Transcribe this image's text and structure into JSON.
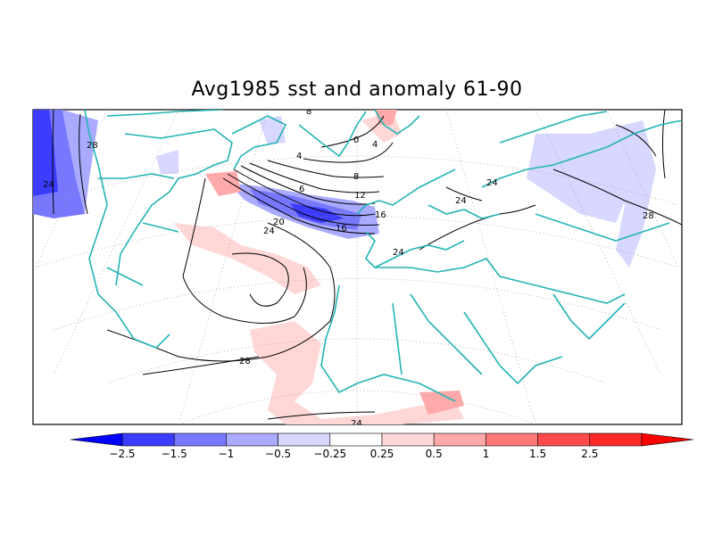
{
  "title": "Avg1985 sst and anomaly 61-90",
  "colorbar": {
    "tick_labels": [
      "-2.5",
      "-1.5",
      "-1",
      "-0.5",
      "-0.25",
      "0.25",
      "0.5",
      "1",
      "1.5",
      "2.5"
    ],
    "colors": [
      "#0000ff",
      "#3c3cff",
      "#7878ff",
      "#aaaaff",
      "#d7d7ff",
      "#ffffff",
      "#ffd7d7",
      "#ffaaaa",
      "#ff7878",
      "#ff4b4b",
      "#ff2828",
      "#ff0000"
    ]
  },
  "contour_labels": [
    "0",
    "4",
    "8",
    "12",
    "16",
    "20",
    "24",
    "28",
    "6",
    "4",
    "16",
    "24",
    "28",
    "24",
    "28",
    "24",
    "24",
    "24",
    "8"
  ],
  "colors": {
    "coastline": "#24b4b4",
    "contour": "#000000",
    "grid": "#9a9a9a"
  }
}
